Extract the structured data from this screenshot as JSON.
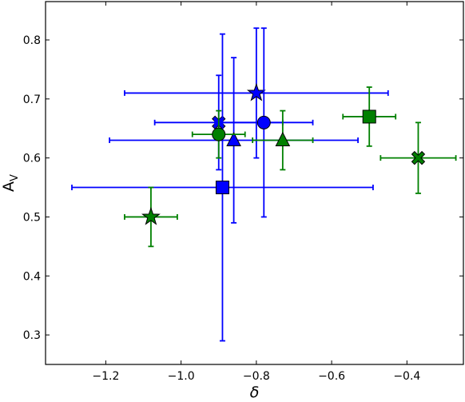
{
  "chart_data": {
    "type": "scatter",
    "xlabel": "δ",
    "ylabel": "A",
    "ylabel_subscript": "V",
    "xlim": [
      -1.36,
      -0.25
    ],
    "ylim": [
      0.25,
      0.865
    ],
    "xticks": [
      -1.2,
      -1.0,
      -0.8,
      -0.6,
      -0.4
    ],
    "xtick_labels": [
      "−1.2",
      "−1.0",
      "−0.8",
      "−0.6",
      "−0.4"
    ],
    "yticks": [
      0.3,
      0.4,
      0.5,
      0.6,
      0.7,
      0.8
    ],
    "ytick_labels": [
      "0.3",
      "0.4",
      "0.5",
      "0.6",
      "0.7",
      "0.8"
    ],
    "grid": false,
    "colors": {
      "blue": "#0000ff",
      "green": "#008000"
    },
    "series": [
      {
        "color": "blue",
        "points": [
          {
            "marker": "star",
            "x": -0.8,
            "y": 0.71,
            "xerr": [
              0.35,
              0.35
            ],
            "yerr": [
              0.11,
              0.11
            ]
          },
          {
            "marker": "x",
            "x": -0.9,
            "y": 0.66,
            "xerr": [
              0.17,
              0.17
            ],
            "yerr": [
              0.08,
              0.08
            ]
          },
          {
            "marker": "circle",
            "x": -0.78,
            "y": 0.66,
            "xerr": [
              0.13,
              0.13
            ],
            "yerr": [
              0.16,
              0.16
            ]
          },
          {
            "marker": "triangle",
            "x": -0.86,
            "y": 0.63,
            "xerr": [
              0.33,
              0.33
            ],
            "yerr": [
              0.14,
              0.14
            ]
          },
          {
            "marker": "square",
            "x": -0.89,
            "y": 0.55,
            "xerr": [
              0.4,
              0.4
            ],
            "yerr": [
              0.26,
              0.26
            ]
          }
        ]
      },
      {
        "color": "green",
        "points": [
          {
            "marker": "square",
            "x": -0.5,
            "y": 0.67,
            "xerr": [
              0.07,
              0.07
            ],
            "yerr": [
              0.05,
              0.05
            ]
          },
          {
            "marker": "circle",
            "x": -0.9,
            "y": 0.64,
            "xerr": [
              0.07,
              0.07
            ],
            "yerr": [
              0.04,
              0.04
            ]
          },
          {
            "marker": "triangle",
            "x": -0.73,
            "y": 0.63,
            "xerr": [
              0.08,
              0.08
            ],
            "yerr": [
              0.05,
              0.05
            ]
          },
          {
            "marker": "x",
            "x": -0.37,
            "y": 0.6,
            "xerr": [
              0.1,
              0.1
            ],
            "yerr": [
              0.06,
              0.06
            ]
          },
          {
            "marker": "star",
            "x": -1.08,
            "y": 0.5,
            "xerr": [
              0.07,
              0.07
            ],
            "yerr": [
              0.05,
              0.05
            ]
          }
        ]
      }
    ]
  }
}
